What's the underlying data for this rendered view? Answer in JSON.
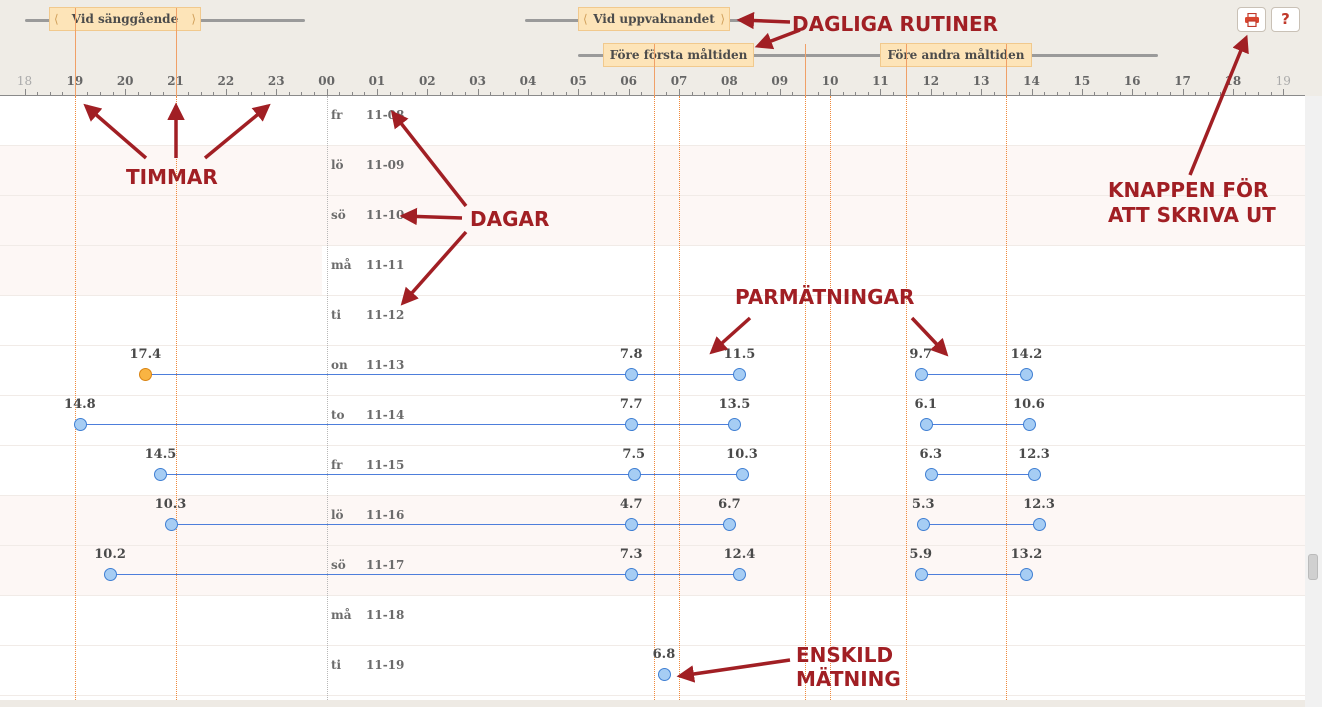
{
  "routines": {
    "bedtime": "Vid sänggående",
    "wakeup": "Vid uppvaknandet",
    "before_first_meal": "Före första måltiden",
    "before_second_meal": "Före andra måltiden"
  },
  "hours": [
    "18",
    "19",
    "20",
    "21",
    "22",
    "23",
    "00",
    "01",
    "02",
    "03",
    "04",
    "05",
    "06",
    "07",
    "08",
    "09",
    "10",
    "11",
    "12",
    "13",
    "14",
    "15",
    "16",
    "17",
    "18",
    "19"
  ],
  "buttons": {
    "print_icon": "printer-icon",
    "help_label": "?"
  },
  "annotations": {
    "daily_routines": "DAGLIGA RUTINER",
    "hours": "TIMMAR",
    "days": "DAGAR",
    "paired": "PARMÄTNINGAR",
    "print_line1": "KNAPPEN FÖR",
    "print_line2": "ATT SKRIVA UT",
    "single_line1": "ENSKILD",
    "single_line2": "MÄTNING"
  },
  "days": [
    {
      "weekday": "fr",
      "date": "11-08"
    },
    {
      "weekday": "lö",
      "date": "11-09"
    },
    {
      "weekday": "sö",
      "date": "11-10"
    },
    {
      "weekday": "må",
      "date": "11-11"
    },
    {
      "weekday": "ti",
      "date": "11-12"
    },
    {
      "weekday": "on",
      "date": "11-13"
    },
    {
      "weekday": "to",
      "date": "11-14"
    },
    {
      "weekday": "fr",
      "date": "11-15"
    },
    {
      "weekday": "lö",
      "date": "11-16"
    },
    {
      "weekday": "sö",
      "date": "11-17"
    },
    {
      "weekday": "må",
      "date": "11-18"
    },
    {
      "weekday": "ti",
      "date": "11-19"
    }
  ],
  "measurements": [
    {
      "day": 5,
      "time": 20.4,
      "value": "17.4",
      "color": "orange"
    },
    {
      "day": 5,
      "time": 30.05,
      "value": "7.8"
    },
    {
      "day": 5,
      "time": 32.2,
      "value": "11.5"
    },
    {
      "day": 5,
      "time": 35.8,
      "value": "9.7"
    },
    {
      "day": 5,
      "time": 37.9,
      "value": "14.2"
    },
    {
      "day": 6,
      "time": 19.1,
      "value": "14.8"
    },
    {
      "day": 6,
      "time": 30.05,
      "value": "7.7"
    },
    {
      "day": 6,
      "time": 32.1,
      "value": "13.5"
    },
    {
      "day": 6,
      "time": 35.9,
      "value": "6.1"
    },
    {
      "day": 6,
      "time": 37.95,
      "value": "10.6"
    },
    {
      "day": 7,
      "time": 20.7,
      "value": "14.5"
    },
    {
      "day": 7,
      "time": 30.1,
      "value": "7.5"
    },
    {
      "day": 7,
      "time": 32.25,
      "value": "10.3"
    },
    {
      "day": 7,
      "time": 36.0,
      "value": "6.3"
    },
    {
      "day": 7,
      "time": 38.05,
      "value": "12.3"
    },
    {
      "day": 8,
      "time": 20.9,
      "value": "10.3"
    },
    {
      "day": 8,
      "time": 30.05,
      "value": "4.7"
    },
    {
      "day": 8,
      "time": 32.0,
      "value": "6.7"
    },
    {
      "day": 8,
      "time": 35.85,
      "value": "5.3"
    },
    {
      "day": 8,
      "time": 38.15,
      "value": "12.3"
    },
    {
      "day": 9,
      "time": 19.7,
      "value": "10.2"
    },
    {
      "day": 9,
      "time": 30.05,
      "value": "7.3"
    },
    {
      "day": 9,
      "time": 32.2,
      "value": "12.4"
    },
    {
      "day": 9,
      "time": 35.8,
      "value": "5.9"
    },
    {
      "day": 9,
      "time": 37.9,
      "value": "13.2"
    },
    {
      "day": 11,
      "time": 30.7,
      "value": "6.8"
    }
  ],
  "pairs": [
    {
      "day": 5,
      "from": 20.4,
      "to": 30.05
    },
    {
      "day": 5,
      "from": 30.05,
      "to": 32.2
    },
    {
      "day": 5,
      "from": 35.8,
      "to": 37.9
    },
    {
      "day": 6,
      "from": 19.1,
      "to": 30.05
    },
    {
      "day": 6,
      "from": 30.05,
      "to": 32.1
    },
    {
      "day": 6,
      "from": 35.9,
      "to": 37.95
    },
    {
      "day": 7,
      "from": 20.7,
      "to": 30.1
    },
    {
      "day": 7,
      "from": 30.1,
      "to": 32.25
    },
    {
      "day": 7,
      "from": 36.0,
      "to": 38.05
    },
    {
      "day": 8,
      "from": 20.9,
      "to": 30.05
    },
    {
      "day": 8,
      "from": 30.05,
      "to": 32.0
    },
    {
      "day": 8,
      "from": 35.85,
      "to": 38.15
    },
    {
      "day": 9,
      "from": 19.7,
      "to": 30.05
    },
    {
      "day": 9,
      "from": 30.05,
      "to": 32.2
    },
    {
      "day": 9,
      "from": 35.8,
      "to": 37.9
    }
  ]
}
